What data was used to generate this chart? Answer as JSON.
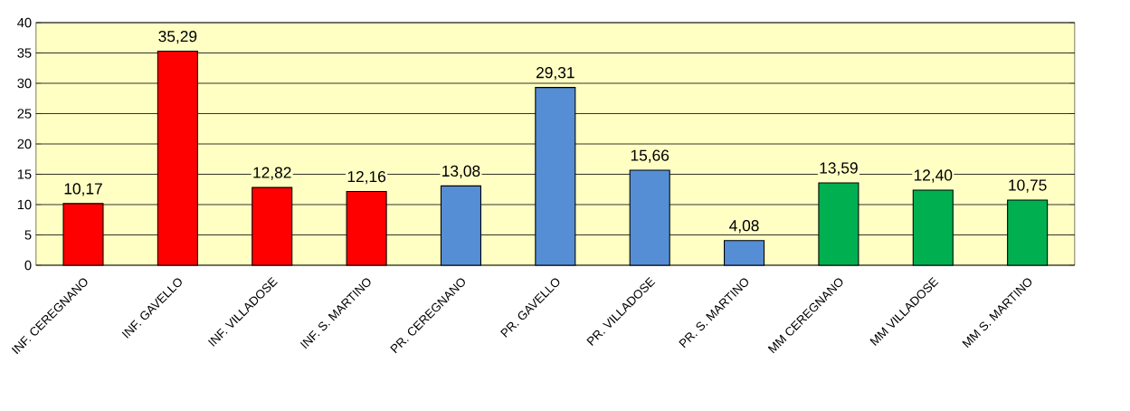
{
  "chart_data": {
    "type": "bar",
    "categories": [
      "INF. CEREGNANO",
      "INF. GAVELLO",
      "INF. VILLADOSE",
      "INF. S. MARTINO",
      "PR. CEREGNANO",
      "PR. GAVELLO",
      "PR. VILLADOSE",
      "PR. S. MARTINO",
      "MM CEREGNANO",
      "MM VILLADOSE",
      "MM S. MARTINO"
    ],
    "values": [
      10.17,
      35.29,
      12.82,
      12.16,
      13.08,
      29.31,
      15.66,
      4.08,
      13.59,
      12.4,
      10.75
    ],
    "value_labels": [
      "10,17",
      "35,29",
      "12,82",
      "12,16",
      "13,08",
      "29,31",
      "15,66",
      "4,08",
      "13,59",
      "12,40",
      "10,75"
    ],
    "colors": [
      "#ff0000",
      "#ff0000",
      "#ff0000",
      "#ff0000",
      "#558ed5",
      "#558ed5",
      "#558ed5",
      "#558ed5",
      "#00b050",
      "#00b050",
      "#00b050"
    ],
    "ylim": [
      0,
      40
    ],
    "yticks": [
      0,
      5,
      10,
      15,
      20,
      25,
      30,
      35,
      40
    ],
    "grid": "y"
  }
}
